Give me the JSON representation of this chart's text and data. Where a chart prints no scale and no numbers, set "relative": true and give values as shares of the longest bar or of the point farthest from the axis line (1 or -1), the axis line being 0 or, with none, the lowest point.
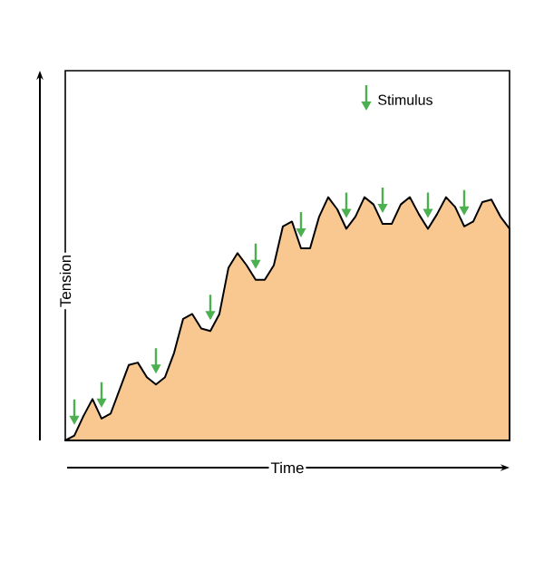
{
  "chart_data": {
    "type": "area",
    "relative": true,
    "xlabel": "Time",
    "ylabel": "Tension",
    "annotations": [
      "Stimulus"
    ],
    "categories": [
      null,
      null,
      null,
      null,
      null,
      null,
      null,
      null,
      null,
      null,
      null,
      null,
      null,
      null,
      null,
      null,
      null,
      null,
      null,
      null,
      null,
      null,
      null,
      null,
      null,
      null,
      null,
      null,
      null,
      null,
      null,
      null,
      null,
      null,
      null,
      null,
      null,
      null,
      null,
      null,
      null,
      null,
      null,
      null,
      null,
      null,
      null,
      null,
      null,
      null
    ],
    "series": [
      {
        "color": "#f9c891",
        "values": [
          0,
          0.02,
          0.1,
          0.17,
          0.09,
          0.11,
          0.21,
          0.31,
          0.32,
          0.26,
          0.23,
          0.26,
          0.36,
          0.5,
          0.52,
          0.46,
          0.45,
          0.52,
          0.71,
          0.77,
          0.72,
          0.66,
          0.66,
          0.72,
          0.88,
          0.9,
          0.79,
          0.79,
          0.92,
          1.0,
          0.95,
          0.87,
          0.92,
          1.0,
          0.97,
          0.89,
          0.89,
          0.97,
          1.0,
          0.93,
          0.87,
          0.93,
          1.0,
          0.96,
          0.88,
          0.9,
          0.98,
          0.99,
          0.92,
          0.87
        ]
      }
    ]
  }
}
